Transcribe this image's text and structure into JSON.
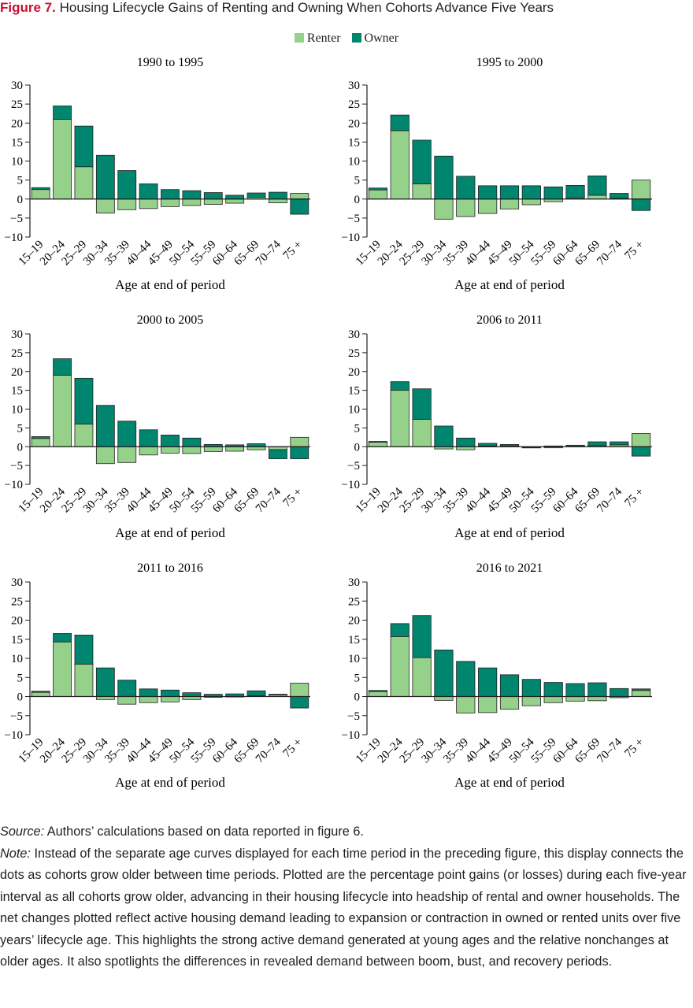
{
  "figure": {
    "label": "Figure 7.",
    "title": "Housing Lifecycle Gains of Renting and Owning When Cohorts Advance Five Years"
  },
  "legend": {
    "renter": "Renter",
    "owner": "Owner"
  },
  "colors": {
    "renter": "#96d18b",
    "owner": "#00856f",
    "axis": "#231f20",
    "figure_label": "#c8102e"
  },
  "footnote": {
    "source_label": "Source:",
    "source_text": " Authors’ calculations based on data reported in figure 6.",
    "note_label": "Note:",
    "note_text": " Instead of the separate age curves displayed for each time period in the preceding figure, this display connects the dots as cohorts grow older between time periods. Plotted are the percentage point gains (or losses) during each five-year interval as all cohorts grow older, advancing in their housing lifecycle into headship of rental and owner households. The net changes plotted reflect active housing demand leading to expansion or contraction in owned or rented units over five years’ lifecycle age. This highlights the strong active demand generated at young ages and the relative nonchanges at older ages. It also spotlights the differences in revealed demand between boom, bust, and recovery periods."
  },
  "chart_data": [
    {
      "type": "bar",
      "stacked": true,
      "title": "1990 to 1995",
      "xlabel": "Age at end of period",
      "categories": [
        "15–19",
        "20–24",
        "25–29",
        "30–34",
        "35–39",
        "40–44",
        "45–49",
        "50–54",
        "55–59",
        "60–64",
        "65–69",
        "70–74",
        "75 +"
      ],
      "ylim": [
        -10,
        30
      ],
      "yticks": [
        "−10",
        "−5",
        "0",
        "5",
        "10",
        "15",
        "20",
        "25",
        "30"
      ],
      "series": [
        {
          "name": "Renter",
          "values": [
            2.5,
            21,
            8.5,
            -3.7,
            -2.8,
            -2.5,
            -2,
            -1.7,
            -1.4,
            -1.1,
            0.5,
            -1,
            1.5
          ]
        },
        {
          "name": "Owner",
          "values": [
            0.5,
            3.5,
            10.7,
            11.5,
            7.5,
            4,
            2.5,
            2.2,
            1.7,
            1,
            1.1,
            1.8,
            -4
          ]
        }
      ]
    },
    {
      "type": "bar",
      "stacked": true,
      "title": "1995 to 2000",
      "xlabel": "Age at end of period",
      "categories": [
        "15–19",
        "20–24",
        "25–29",
        "30–34",
        "35–39",
        "40–44",
        "45–49",
        "50–54",
        "55–59",
        "60–64",
        "65–69",
        "70–74",
        "75 +"
      ],
      "ylim": [
        -10,
        30
      ],
      "yticks": [
        "−10",
        "−5",
        "0",
        "5",
        "10",
        "15",
        "20",
        "25",
        "30"
      ],
      "series": [
        {
          "name": "Renter",
          "values": [
            2.4,
            18,
            4,
            -5.3,
            -4.6,
            -3.8,
            -2.6,
            -1.5,
            -0.7,
            0.3,
            1,
            0.2,
            5
          ]
        },
        {
          "name": "Owner",
          "values": [
            0.5,
            4.1,
            11.5,
            11.3,
            6,
            3.5,
            3.5,
            3.5,
            3.2,
            3.3,
            5.1,
            1.3,
            -3
          ]
        }
      ]
    },
    {
      "type": "bar",
      "stacked": true,
      "title": "2000 to 2005",
      "xlabel": "Age at end of period",
      "categories": [
        "15–19",
        "20–24",
        "25–29",
        "30–34",
        "35–39",
        "40–44",
        "45–49",
        "50–54",
        "55–59",
        "60–64",
        "65–69",
        "70–74",
        "75 +"
      ],
      "ylim": [
        -10,
        30
      ],
      "yticks": [
        "−10",
        "−5",
        "0",
        "5",
        "10",
        "15",
        "20",
        "25",
        "30"
      ],
      "series": [
        {
          "name": "Renter",
          "values": [
            2.2,
            19,
            6,
            -4.5,
            -4.2,
            -2.2,
            -1.7,
            -1.8,
            -1.3,
            -1.2,
            -0.8,
            -0.8,
            2.5
          ]
        },
        {
          "name": "Owner",
          "values": [
            0.5,
            4.4,
            12.2,
            11,
            6.8,
            4.5,
            3.1,
            2.3,
            0.6,
            0.5,
            0.8,
            -2.4,
            -3.2
          ]
        }
      ]
    },
    {
      "type": "bar",
      "stacked": true,
      "title": "2006 to 2011",
      "xlabel": "Age at end of period",
      "categories": [
        "15–19",
        "20–24",
        "25–29",
        "30–34",
        "35–39",
        "40–44",
        "45–49",
        "50–54",
        "55–59",
        "60–64",
        "65–69",
        "70–74",
        "75 +"
      ],
      "ylim": [
        -10,
        30
      ],
      "yticks": [
        "−10",
        "−5",
        "0",
        "5",
        "10",
        "15",
        "20",
        "25",
        "30"
      ],
      "series": [
        {
          "name": "Renter",
          "values": [
            1.2,
            15,
            7.3,
            -0.6,
            -0.8,
            0.2,
            0.2,
            -0.2,
            -0.3,
            0.1,
            0.3,
            0.5,
            3.5
          ]
        },
        {
          "name": "Owner",
          "values": [
            0.2,
            2.3,
            8.1,
            5.5,
            2.3,
            0.7,
            0.4,
            -0.1,
            0.2,
            0.3,
            1,
            0.8,
            -2.5
          ]
        }
      ]
    },
    {
      "type": "bar",
      "stacked": true,
      "title": "2011 to 2016",
      "xlabel": "Age at end of period",
      "categories": [
        "15–19",
        "20–24",
        "25–29",
        "30–34",
        "35–39",
        "40–44",
        "45–49",
        "50–54",
        "55–59",
        "60–64",
        "65–69",
        "70–74",
        "75 +"
      ],
      "ylim": [
        -10,
        30
      ],
      "yticks": [
        "−10",
        "−5",
        "0",
        "5",
        "10",
        "15",
        "20",
        "25",
        "30"
      ],
      "series": [
        {
          "name": "Renter",
          "values": [
            1.1,
            14.3,
            8.5,
            -0.8,
            -2,
            -1.6,
            -1.4,
            -0.8,
            -0.2,
            -0.1,
            0.2,
            0.4,
            3.5
          ]
        },
        {
          "name": "Owner",
          "values": [
            0.3,
            2.2,
            7.6,
            7.5,
            4.3,
            2,
            1.7,
            1,
            0.6,
            0.7,
            1.3,
            0.2,
            -3
          ]
        }
      ]
    },
    {
      "type": "bar",
      "stacked": true,
      "title": "2016 to 2021",
      "xlabel": "Age at end of period",
      "categories": [
        "15–19",
        "20–24",
        "25–29",
        "30–34",
        "35–39",
        "40–44",
        "45–49",
        "50–54",
        "55–59",
        "60–64",
        "65–69",
        "70–74",
        "75 +"
      ],
      "ylim": [
        -10,
        30
      ],
      "yticks": [
        "−10",
        "−5",
        "0",
        "5",
        "10",
        "15",
        "20",
        "25",
        "30"
      ],
      "series": [
        {
          "name": "Renter",
          "values": [
            1.3,
            15.7,
            10.2,
            -1,
            -4.3,
            -4.2,
            -3.3,
            -2.4,
            -1.6,
            -1.2,
            -1.1,
            -0.3,
            1.6
          ]
        },
        {
          "name": "Owner",
          "values": [
            0.3,
            3.4,
            11,
            12.2,
            9.2,
            7.5,
            5.7,
            4.5,
            3.7,
            3.4,
            3.6,
            2.1,
            0.4
          ]
        }
      ]
    }
  ]
}
